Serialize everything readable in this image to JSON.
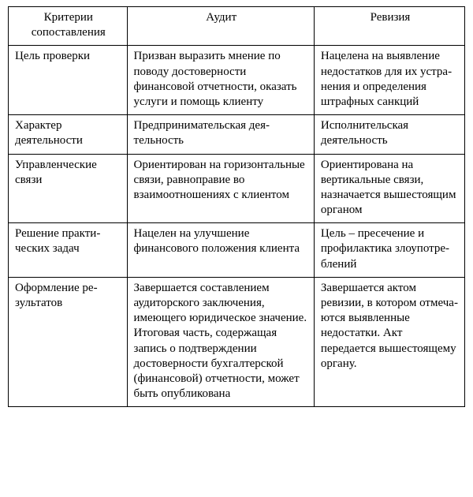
{
  "table": {
    "columns": [
      "Критерии сопоставления",
      "Аудит",
      "Ревизия"
    ],
    "rows": [
      {
        "criterion": "Цель проверки",
        "audit": "Призван выразить мнение по поводу достоверности финансовой отчетности, оказать услуги и помощь клиенту",
        "revision": "Нацелена на вы­явление недостат­ков для их устра­нения и опреде­ления штрафных санкций"
      },
      {
        "criterion": "Характер деятельности",
        "audit": "Предпринимательская  дея­тельность",
        "revision": "Исполнительская деятельность"
      },
      {
        "criterion": "Управленческие связи",
        "audit": "Ориентирован на горизон­тальные связи, равноправие во взаимоотношениях с клиентом",
        "revision": "Ориентирована на вертикальные связи, назначает­ся вышестоящим органом"
      },
      {
        "criterion": "Решение практи­ческих задач",
        "audit": "Нацелен на улучшение финансового положения клиента",
        "revision": "Цель – пресече­ние и профилак­тика злоупотре­блений"
      },
      {
        "criterion": "Оформление ре­зультатов",
        "audit": "Завершается составлением аудиторского заключения, имеющего юридическое значение. Итоговая часть, содержащая запись о под­тверждении достоверности бухгалтерской (финансо­вой) отчетности, может быть опубликована",
        "revision": "Завершается ак­том ревизии, в котором отмеча­ются выявленные недостатки. Акт передается выше­стоящему органу."
      }
    ],
    "style": {
      "font_family": "Times New Roman",
      "font_size_pt": 11,
      "text_color": "#000000",
      "border_color": "#000000",
      "background_color": "#ffffff",
      "col_widths_pct": [
        26,
        41,
        33
      ]
    }
  }
}
